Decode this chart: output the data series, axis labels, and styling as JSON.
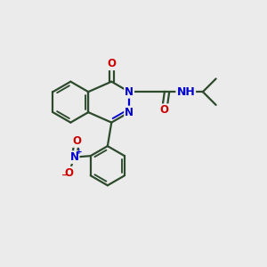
{
  "bg_color": "#ebebeb",
  "bond_color": "#2d4a2d",
  "atom_color_N": "#0000cc",
  "atom_color_O": "#cc0000",
  "atom_color_H": "#4a8080",
  "line_width": 1.6,
  "font_size": 8.5,
  "dpi": 100,
  "fig_w": 3.0,
  "fig_h": 3.0,
  "xlim": [
    0,
    10
  ],
  "ylim": [
    0,
    10
  ]
}
